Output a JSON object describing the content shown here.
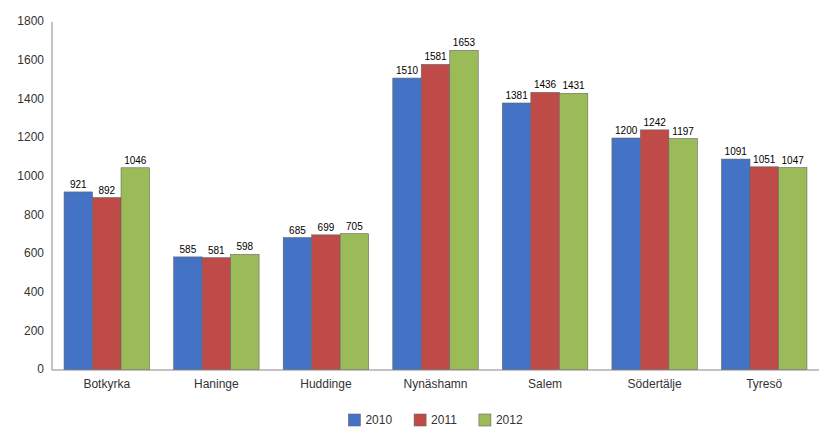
{
  "chart_data": {
    "type": "bar",
    "categories": [
      "Botkyrka",
      "Haninge",
      "Huddinge",
      "Nynäshamn",
      "Salem",
      "Södertälje",
      "Tyresö"
    ],
    "series": [
      {
        "name": "2010",
        "color": "#4472C4",
        "values": [
          921,
          585,
          685,
          1510,
          1381,
          1200,
          1091
        ]
      },
      {
        "name": "2011",
        "color": "#BE4B48",
        "values": [
          892,
          581,
          699,
          1581,
          1436,
          1242,
          1051
        ]
      },
      {
        "name": "2012",
        "color": "#9BBB59",
        "values": [
          1046,
          598,
          705,
          1653,
          1431,
          1197,
          1047
        ]
      }
    ],
    "ylim": [
      0,
      1800
    ],
    "yticks": [
      0,
      200,
      400,
      600,
      800,
      1000,
      1200,
      1400,
      1600,
      1800
    ],
    "grid": false,
    "data_labels": true,
    "legend": "bottom"
  }
}
